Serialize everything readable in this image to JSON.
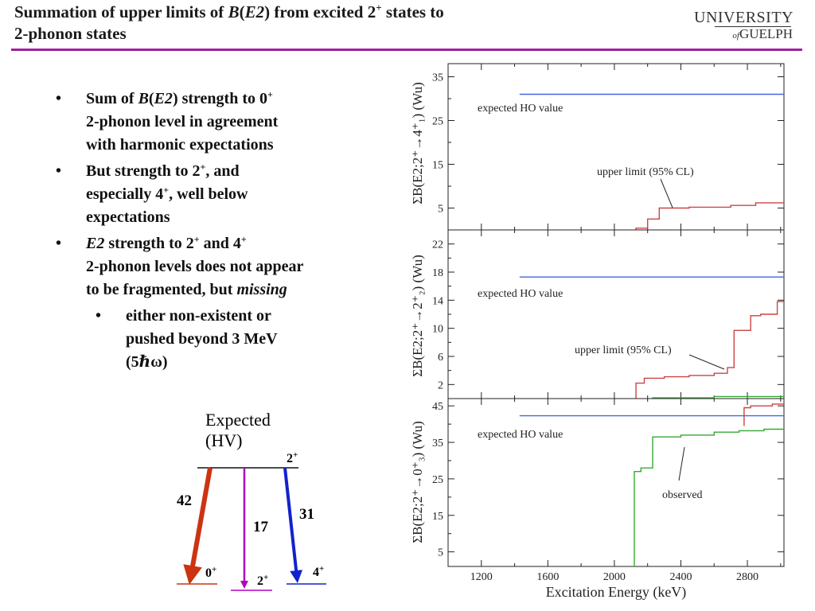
{
  "slide": {
    "title": {
      "part1": "Summation of upper limits of ",
      "B": "B",
      "open_paren": "(",
      "E2": "E2",
      "part2": ") from excited 2",
      "sup_plus": "+",
      "part3": " states to",
      "line2": "2-phonon states"
    },
    "logo": {
      "university": "UNIVERSITY",
      "of": "of",
      "guelph": "GUELPH"
    },
    "accent_color": "#a020a0"
  },
  "bullets": {
    "b1": {
      "pre": "Sum of ",
      "B": "B",
      "paren_open": "(",
      "E2": "E2",
      "mid": ") strength to 0",
      "sup": "+",
      "line2": "2-phonon level in agreement",
      "line3": "with harmonic expectations"
    },
    "b2": {
      "pre": "But strength to 2",
      "sup1": "+",
      "mid": ", and",
      "line2_pre": "especially 4",
      "sup2": "+",
      "line2_post": ", well below",
      "line3": "expectations"
    },
    "b3": {
      "E2": "E2",
      "pre": " strength to 2",
      "sup1": "+",
      "mid": " and 4",
      "sup2": "+",
      "line2": "2-phonon levels does not appear",
      "line3_pre": "to be fragmented, but ",
      "missing": "missing"
    },
    "sub1": {
      "line1": " either non-existent or",
      "line2": "pushed beyond 3 MeV",
      "line3": "(5ℏω)"
    },
    "dot": "•"
  },
  "scheme": {
    "expected_line1": "Expected",
    "expected_line2": "(HV)",
    "top_level": "2",
    "sup": "+",
    "values": {
      "to_0plus": "42",
      "to_2plus": "17",
      "to_4plus": "31"
    },
    "final_levels": [
      "0",
      "2",
      "4"
    ],
    "colors": {
      "to_0plus": "#cc3311",
      "to_2plus": "#b000c0",
      "to_4plus": "#1122cc"
    }
  },
  "chart_data": [
    {
      "type": "line",
      "ylabel": "ΣB(E2;2⁺→4⁺₁) (Wu)",
      "xlim": [
        1000,
        3020
      ],
      "ylim": [
        0,
        38
      ],
      "yticks": [
        5,
        15,
        25,
        35
      ],
      "series": [
        {
          "color": "#4466dd",
          "x": [
            1430,
            3020
          ],
          "y": [
            31,
            31
          ]
        },
        {
          "color": "#cc4444",
          "x": [
            2130,
            2130,
            2200,
            2200,
            2270,
            2270,
            2450,
            2450,
            2700,
            2700,
            2850,
            2850,
            3020
          ],
          "y": [
            0,
            0.4,
            0.4,
            2.5,
            2.5,
            5.0,
            5.0,
            5.2,
            5.2,
            5.6,
            5.6,
            6.2,
            6.2
          ]
        }
      ],
      "annotations": [
        {
          "text": "expected HO value"
        },
        {
          "text": "upper limit (95% CL)"
        }
      ]
    },
    {
      "type": "line",
      "ylabel": "ΣB(E2;2⁺→2⁺₂) (Wu)",
      "xlim": [
        1000,
        3020
      ],
      "ylim": [
        0,
        24
      ],
      "yticks": [
        2,
        6,
        10,
        14,
        18,
        22
      ],
      "series": [
        {
          "color": "#4466dd",
          "x": [
            1430,
            3020
          ],
          "y": [
            17.3,
            17.3
          ]
        },
        {
          "color": "#cc4444",
          "x": [
            2130,
            2130,
            2180,
            2180,
            2300,
            2300,
            2450,
            2450,
            2600,
            2600,
            2680,
            2680,
            2720,
            2720,
            2820,
            2820,
            2880,
            2880,
            2980,
            2980,
            3020
          ],
          "y": [
            0,
            2.2,
            2.2,
            2.9,
            2.9,
            3.1,
            3.1,
            3.3,
            3.3,
            3.6,
            3.6,
            4.4,
            4.4,
            9.7,
            9.7,
            11.8,
            11.8,
            12.0,
            12.0,
            13.8,
            13.8
          ]
        },
        {
          "color": "#33aa33",
          "x": [
            2230,
            2230,
            2600,
            2600,
            3020
          ],
          "y": [
            0,
            0.1,
            0.1,
            0.3,
            0.3
          ]
        }
      ],
      "annotations": [
        {
          "text": "expected HO value"
        },
        {
          "text": "upper limit (95% CL)"
        }
      ]
    },
    {
      "type": "line",
      "xlabel": "Excitation Energy (keV)",
      "ylabel": "ΣB(E2;2⁺→0⁺₃) (Wu)",
      "xlim": [
        1000,
        3020
      ],
      "xticks": [
        1200,
        1600,
        2000,
        2400,
        2800
      ],
      "ylim": [
        1,
        47
      ],
      "yticks": [
        5,
        15,
        25,
        35,
        45
      ],
      "series": [
        {
          "color": "#4466dd",
          "x": [
            1430,
            3020
          ],
          "y": [
            42.3,
            42.3
          ]
        },
        {
          "color": "#cc4444",
          "x": [
            2780,
            2780,
            2820,
            2820,
            2950,
            2950,
            3020
          ],
          "y": [
            39.5,
            44.5,
            44.5,
            45.0,
            45.0,
            45.5,
            45.5
          ]
        },
        {
          "color": "#33aa33",
          "x": [
            2120,
            2120,
            2160,
            2160,
            2230,
            2230,
            2400,
            2400,
            2600,
            2600,
            2750,
            2750,
            2900,
            2900,
            3020
          ],
          "y": [
            1,
            27,
            27,
            28,
            28,
            36.5,
            36.5,
            37,
            37,
            37.8,
            37.8,
            38.2,
            38.2,
            38.6,
            38.6
          ]
        }
      ],
      "annotations": [
        {
          "text": "expected HO value"
        },
        {
          "text": "observed"
        }
      ]
    }
  ]
}
